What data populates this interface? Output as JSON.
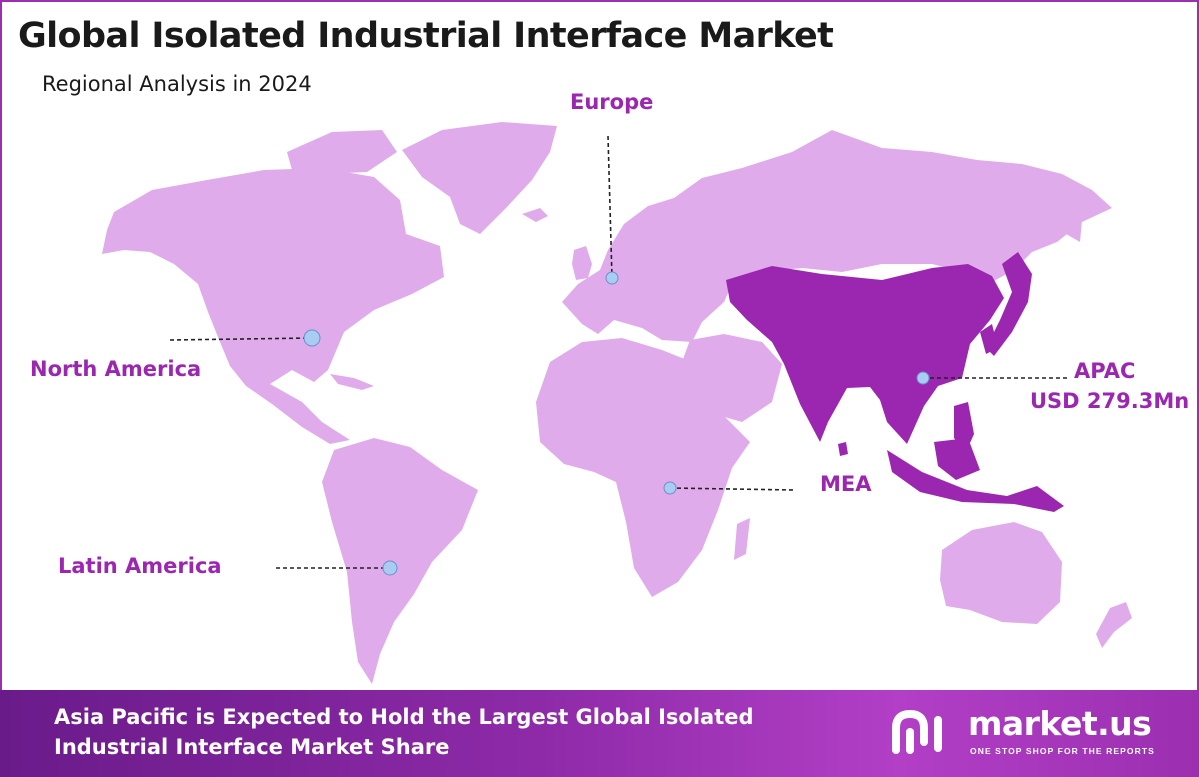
{
  "title": "Global Isolated Industrial Interface Market",
  "subtitle": "Regional Analysis in 2024",
  "colors": {
    "border": "#9b2fb0",
    "land": "#e0abeb",
    "highlight": "#9b27b0",
    "label": "#9b27b0",
    "marker": "#a9cdf0"
  },
  "regions": [
    {
      "id": "europe",
      "label": "Europe",
      "highlighted": false
    },
    {
      "id": "north-america",
      "label": "North America",
      "highlighted": false
    },
    {
      "id": "apac",
      "label": "APAC",
      "value": "USD 279.3Mn",
      "highlighted": true
    },
    {
      "id": "mea",
      "label": "MEA",
      "highlighted": false
    },
    {
      "id": "latin-america",
      "label": "Latin America",
      "highlighted": false
    }
  ],
  "footer": {
    "headline": "Asia Pacific is Expected to Hold the Largest Global Isolated Industrial Interface Market Share"
  },
  "logo": {
    "name": "market.us",
    "tagline": "ONE STOP SHOP FOR THE REPORTS"
  }
}
